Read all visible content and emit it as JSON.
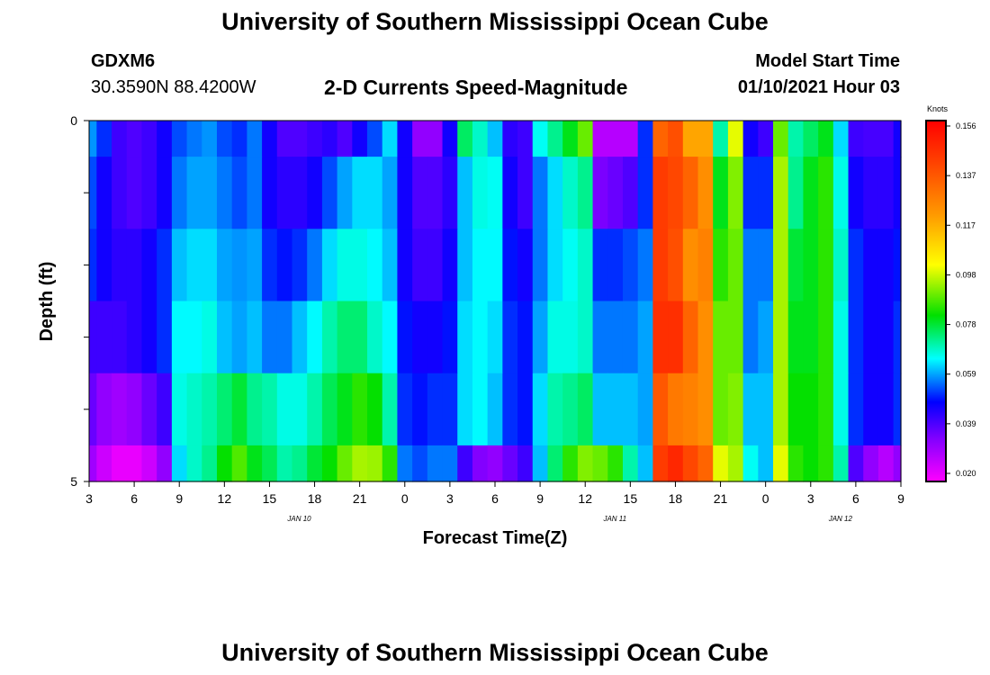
{
  "header": {
    "title": "University of Southern Mississippi Ocean Cube",
    "station": "GDXM6",
    "location": "30.3590N 88.4200W",
    "chart_title": "2-D Currents Speed-Magnitude",
    "model_label": "Model Start Time",
    "model_time": "01/10/2021 Hour 03"
  },
  "footer": {
    "title": "University of Southern Mississippi Ocean Cube"
  },
  "chart_data": {
    "type": "heatmap",
    "title": "2-D Currents Speed-Magnitude",
    "xlabel": "Forecast Time(Z)",
    "ylabel": "Depth (ft)",
    "units": "Knots",
    "x_tick_labels": [
      "3",
      "6",
      "9",
      "12",
      "15",
      "18",
      "21",
      "0",
      "3",
      "6",
      "9",
      "12",
      "15",
      "18",
      "21",
      "0",
      "3",
      "6",
      "9"
    ],
    "date_labels": [
      {
        "label": "JAN 10",
        "after_tick": 5
      },
      {
        "label": "JAN 11",
        "after_tick": 12
      },
      {
        "label": "JAN 12",
        "after_tick": 17
      }
    ],
    "y_tick_labels": [
      "0",
      "5"
    ],
    "ylim": [
      0,
      5
    ],
    "colorbar_labels": [
      "0.156",
      "0.137",
      "0.117",
      "0.098",
      "0.078",
      "0.059",
      "0.039",
      "0.020"
    ],
    "color_range": [
      0.015,
      0.16
    ],
    "x_hours": [
      3,
      4,
      5,
      6,
      7,
      8,
      9,
      10,
      11,
      12,
      13,
      14,
      15,
      16,
      17,
      18,
      19,
      20,
      21,
      22,
      23,
      0,
      1,
      2,
      3,
      4,
      5,
      6,
      7,
      8,
      9,
      10,
      11,
      12,
      13,
      14,
      15,
      16,
      17,
      18,
      19,
      20,
      21,
      22,
      23,
      0,
      1,
      2,
      3,
      4,
      5,
      6,
      7,
      8,
      9
    ],
    "depth_bins": [
      "0-0.5",
      "0.5-1.5",
      "1.5-2.5",
      "2.5-3.5",
      "3.5-4.5",
      "4.5-5"
    ],
    "values": [
      [
        0.057,
        0.05,
        0.04,
        0.038,
        0.04,
        0.045,
        0.052,
        0.055,
        0.057,
        0.052,
        0.05,
        0.055,
        0.045,
        0.038,
        0.038,
        0.04,
        0.042,
        0.038,
        0.045,
        0.052,
        0.062,
        0.045,
        0.03,
        0.03,
        0.045,
        0.075,
        0.068,
        0.06,
        0.042,
        0.04,
        0.065,
        0.072,
        0.08,
        0.09,
        0.025,
        0.025,
        0.025,
        0.05,
        0.135,
        0.14,
        0.12,
        0.12,
        0.07,
        0.1,
        0.045,
        0.04,
        0.09,
        0.07,
        0.075,
        0.08,
        0.062,
        0.04,
        0.039,
        0.039,
        0.045
      ],
      [
        0.052,
        0.045,
        0.04,
        0.038,
        0.04,
        0.045,
        0.055,
        0.058,
        0.058,
        0.055,
        0.052,
        0.055,
        0.045,
        0.042,
        0.042,
        0.045,
        0.052,
        0.058,
        0.062,
        0.062,
        0.058,
        0.045,
        0.038,
        0.038,
        0.042,
        0.06,
        0.066,
        0.065,
        0.045,
        0.04,
        0.055,
        0.062,
        0.068,
        0.072,
        0.033,
        0.035,
        0.038,
        0.05,
        0.145,
        0.142,
        0.135,
        0.125,
        0.08,
        0.092,
        0.05,
        0.05,
        0.095,
        0.072,
        0.08,
        0.085,
        0.066,
        0.045,
        0.042,
        0.042,
        0.045
      ],
      [
        0.05,
        0.045,
        0.042,
        0.042,
        0.045,
        0.05,
        0.06,
        0.062,
        0.062,
        0.058,
        0.057,
        0.058,
        0.05,
        0.048,
        0.05,
        0.055,
        0.062,
        0.066,
        0.066,
        0.064,
        0.06,
        0.045,
        0.04,
        0.04,
        0.045,
        0.06,
        0.064,
        0.064,
        0.048,
        0.045,
        0.055,
        0.062,
        0.065,
        0.068,
        0.05,
        0.05,
        0.052,
        0.055,
        0.145,
        0.14,
        0.125,
        0.128,
        0.085,
        0.09,
        0.055,
        0.055,
        0.095,
        0.078,
        0.08,
        0.085,
        0.068,
        0.05,
        0.045,
        0.045,
        0.048
      ],
      [
        0.04,
        0.04,
        0.04,
        0.042,
        0.045,
        0.05,
        0.064,
        0.064,
        0.066,
        0.06,
        0.058,
        0.06,
        0.055,
        0.055,
        0.06,
        0.064,
        0.07,
        0.074,
        0.074,
        0.068,
        0.064,
        0.048,
        0.045,
        0.045,
        0.048,
        0.062,
        0.064,
        0.062,
        0.05,
        0.048,
        0.058,
        0.066,
        0.066,
        0.068,
        0.055,
        0.055,
        0.055,
        0.058,
        0.148,
        0.148,
        0.135,
        0.125,
        0.09,
        0.09,
        0.055,
        0.058,
        0.095,
        0.08,
        0.08,
        0.085,
        0.066,
        0.05,
        0.045,
        0.045,
        0.05
      ],
      [
        0.035,
        0.03,
        0.028,
        0.03,
        0.035,
        0.04,
        0.066,
        0.068,
        0.07,
        0.074,
        0.078,
        0.072,
        0.07,
        0.066,
        0.066,
        0.07,
        0.076,
        0.08,
        0.085,
        0.082,
        0.07,
        0.05,
        0.048,
        0.05,
        0.05,
        0.062,
        0.064,
        0.06,
        0.05,
        0.048,
        0.062,
        0.07,
        0.072,
        0.075,
        0.06,
        0.06,
        0.06,
        0.058,
        0.138,
        0.13,
        0.128,
        0.125,
        0.09,
        0.092,
        0.06,
        0.06,
        0.095,
        0.082,
        0.082,
        0.085,
        0.066,
        0.05,
        0.045,
        0.045,
        0.05
      ],
      [
        0.028,
        0.022,
        0.018,
        0.018,
        0.022,
        0.03,
        0.062,
        0.068,
        0.072,
        0.082,
        0.088,
        0.08,
        0.076,
        0.07,
        0.072,
        0.078,
        0.082,
        0.09,
        0.095,
        0.094,
        0.085,
        0.055,
        0.052,
        0.055,
        0.055,
        0.04,
        0.032,
        0.03,
        0.035,
        0.04,
        0.06,
        0.074,
        0.085,
        0.092,
        0.09,
        0.085,
        0.07,
        0.06,
        0.145,
        0.15,
        0.142,
        0.135,
        0.1,
        0.095,
        0.065,
        0.06,
        0.1,
        0.085,
        0.082,
        0.085,
        0.07,
        0.038,
        0.03,
        0.025,
        0.03
      ]
    ]
  }
}
